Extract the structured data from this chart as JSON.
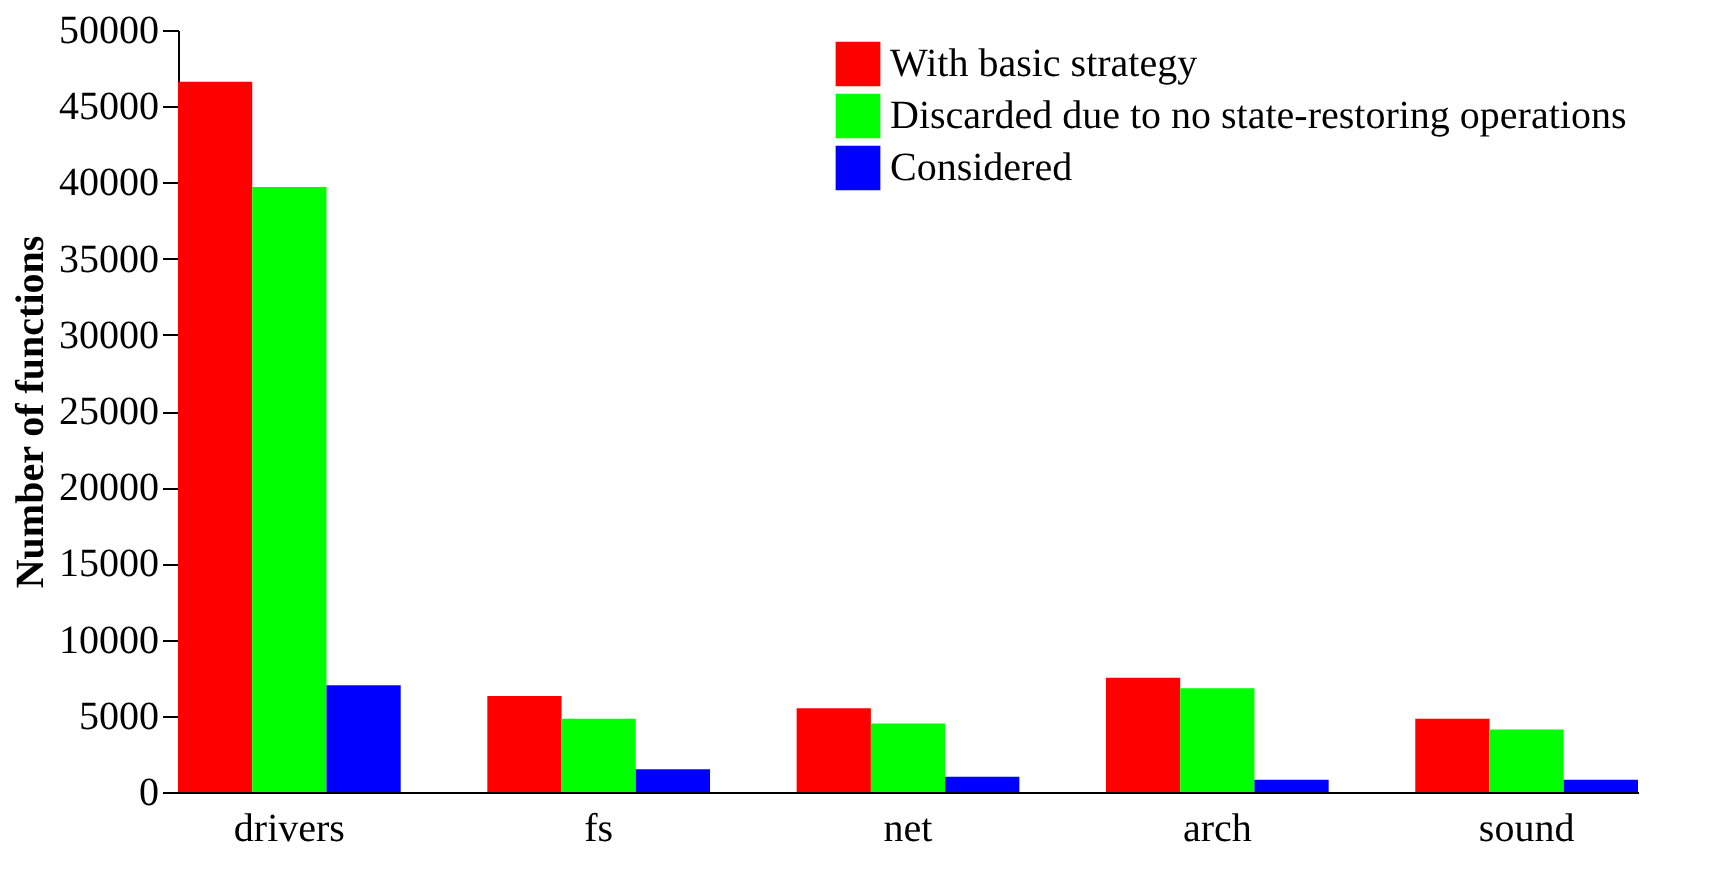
{
  "chart_data": {
    "type": "bar",
    "ylabel": "Number of functions",
    "categories": [
      "drivers",
      "fs",
      "net",
      "arch",
      "sound"
    ],
    "series": [
      {
        "name": "With basic strategy",
        "color": "#ff0000",
        "values": [
          46600,
          6300,
          5500,
          7500,
          4800
        ]
      },
      {
        "name": "Discarded due to no state-restoring operations",
        "color": "#00ff00",
        "values": [
          39700,
          4800,
          4500,
          6800,
          4100
        ]
      },
      {
        "name": "Considered",
        "color": "#0000ff",
        "values": [
          7000,
          1500,
          1000,
          800,
          800
        ]
      }
    ],
    "ylim": [
      0,
      50000
    ],
    "yticks": [
      0,
      5000,
      10000,
      15000,
      20000,
      25000,
      30000,
      35000,
      40000,
      45000,
      50000
    ],
    "grid": false,
    "legend": "top right"
  }
}
